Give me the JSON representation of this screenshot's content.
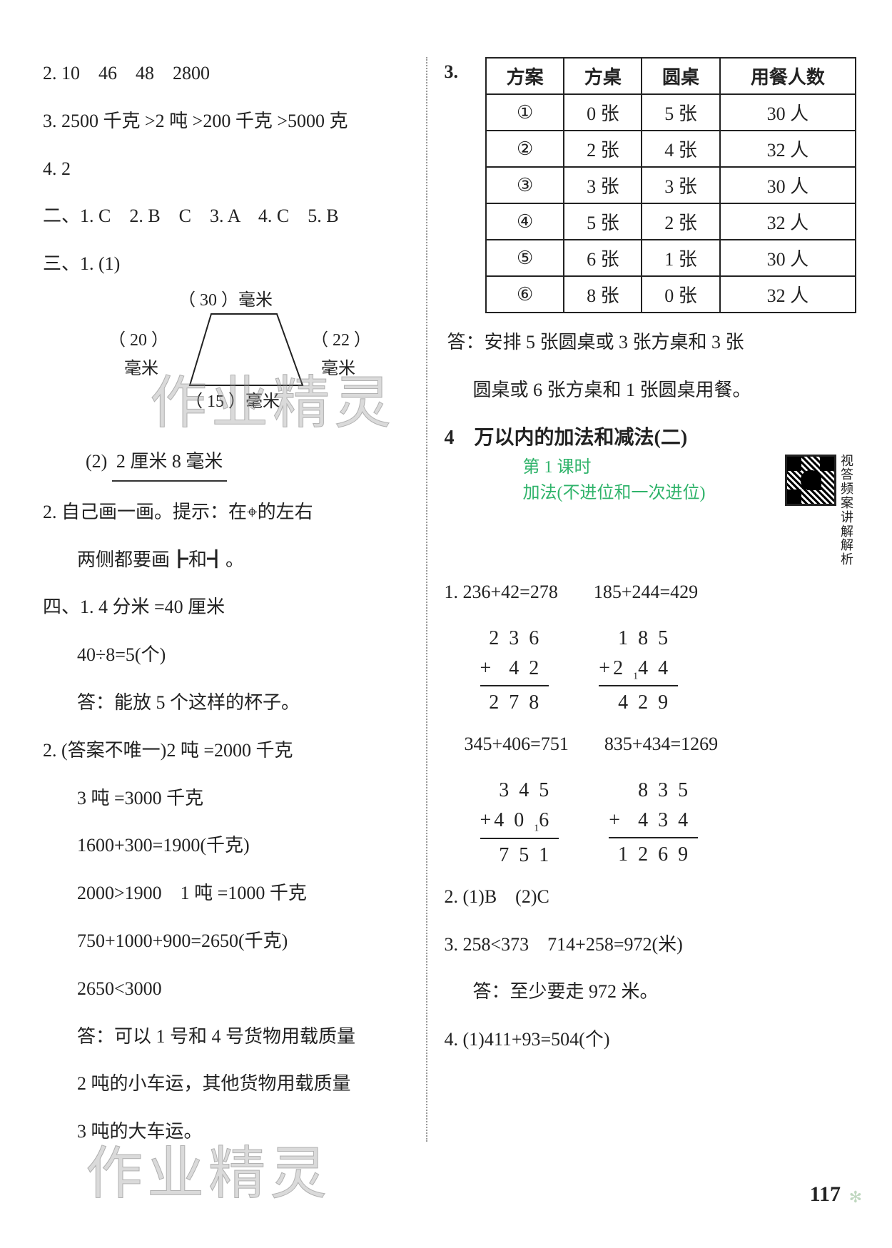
{
  "left": {
    "l2": "2. 10　46　48　2800",
    "l3": "3. 2500 千克 >2 吨 >200 千克 >5000 克",
    "l4": "4. 2",
    "mc_line": "二、1. C　2. B　C　3. A　4. C　5. B",
    "san_head": "三、1. (1)",
    "trap": {
      "top": "（ 30 ）毫米",
      "left_n": "（ 20 ）",
      "left_u": "毫米",
      "right_n": "（ 22 ）",
      "right_u": "毫米",
      "bottom": "（ 15 ）毫米"
    },
    "san_2": "(2)",
    "san_2_val": "2 厘米 8 毫米",
    "item2a": "2. 自己画一画。提示：在⌖的左右",
    "item2b": "两侧都要画┣和┫。",
    "si_1a": "四、1. 4 分米 =40 厘米",
    "si_1b": "40÷8=5(个)",
    "si_1c": "答：能放 5 个这样的杯子。",
    "si_2a": "2. (答案不唯一)2 吨 =2000 千克",
    "si_2b": "3 吨 =3000 千克",
    "si_2c": "1600+300=1900(千克)",
    "si_2d": "2000>1900　1 吨 =1000 千克",
    "si_2e": "750+1000+900=2650(千克)",
    "si_2f": "2650<3000",
    "si_2g": "答：可以 1 号和 4 号货物用载质量",
    "si_2h": "2 吨的小车运，其他货物用载质量",
    "si_2i": "3 吨的大车运。"
  },
  "right": {
    "q3_label": "3.",
    "table_header": [
      "方案",
      "方桌",
      "圆桌",
      "用餐人数"
    ],
    "table_rows": [
      [
        "①",
        "0 张",
        "5 张",
        "30 人"
      ],
      [
        "②",
        "2 张",
        "4 张",
        "32 人"
      ],
      [
        "③",
        "3 张",
        "3 张",
        "30 人"
      ],
      [
        "④",
        "5 张",
        "2 张",
        "32 人"
      ],
      [
        "⑤",
        "6 张",
        "1 张",
        "30 人"
      ],
      [
        "⑥",
        "8 张",
        "0 张",
        "32 人"
      ]
    ],
    "ans3a": "答：安排 5 张圆桌或 3 张方桌和 3 张",
    "ans3b": "圆桌或 6 张方桌和 1 张圆桌用餐。",
    "sec_num": "4",
    "sec_title": "万以内的加法和减法(二)",
    "sub1": "第 1 课时",
    "sub2": "加法(不进位和一次进位)",
    "qr_label": "视答\n频案\n讲解\n解析",
    "eq1a": "1. 236+42=278",
    "eq1b": "185+244=429",
    "add1": {
      "a": "236",
      "b": " 42",
      "s": "278",
      "carry": ""
    },
    "add2": {
      "a": "185",
      "b": "244",
      "s": "429",
      "carry": "1"
    },
    "eq2a": "345+406=751",
    "eq2b": "835+434=1269",
    "add3": {
      "a": "345",
      "b": "406",
      "s": "751",
      "carry": "1"
    },
    "add4": {
      "a": " 835",
      "b": " 434",
      "s": "1269",
      "carry": ""
    },
    "q2": "2. (1)B　(2)C",
    "q3a": "3. 258<373　714+258=972(米)",
    "q3b": "答：至少要走 972 米。",
    "q4a": "4. (1)411+93=504(个)"
  },
  "watermark": "作业精灵",
  "page_number": "117"
}
